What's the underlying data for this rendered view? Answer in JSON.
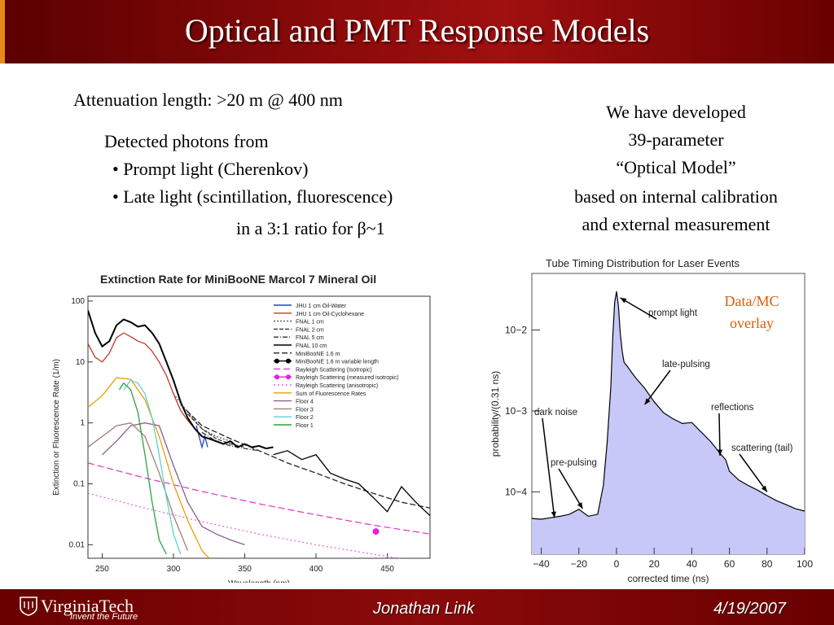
{
  "slide": {
    "title": "Optical and PMT Response Models",
    "attenuation": "Attenuation length:  >20 m @ 400 nm",
    "detected_heading": "Detected photons from",
    "bullets": [
      "• Prompt light (Cherenkov)",
      "• Late light (scintillation, fluorescence)"
    ],
    "ratio_prefix": "in a 3:1 ratio for ",
    "ratio_symbol": "β~1",
    "right_text": [
      "We have developed",
      "39-parameter",
      "“Optical Model”",
      "based on internal calibration",
      "and external measurement"
    ],
    "overlay_label": [
      "Data/MC",
      "overlay"
    ],
    "footer": {
      "org": "VirginiaTech",
      "org_tagline": "Invent the Future",
      "author": "Jonathan Link",
      "date": "4/19/2007"
    }
  },
  "chart_data": [
    {
      "type": "line",
      "title": "Extinction Rate for MiniBooNE Marcol 7 Mineral Oil",
      "xlabel": "Wavelength (nm)",
      "ylabel": "Extinction or Fluorescence Rate (1/m)",
      "yscale": "log",
      "xlim": [
        240,
        480
      ],
      "ylim": [
        0.006,
        120
      ],
      "x_ticks": [
        250,
        300,
        350,
        400,
        450
      ],
      "y_ticks": [
        {
          "value": 100,
          "label": "100"
        },
        {
          "value": 10,
          "label": "10"
        },
        {
          "value": 1,
          "label": "1"
        },
        {
          "value": 0.1,
          "label": "0.1"
        },
        {
          "value": 0.01,
          "label": "0.01"
        }
      ],
      "legend_position": "top-right",
      "series": [
        {
          "name": "JHU 1 cm Oil-Water",
          "color": "#1f3fd0",
          "dash": "",
          "x": [
            316,
            318,
            320,
            322,
            324
          ],
          "y": [
            0.9,
            0.6,
            0.4,
            0.6,
            0.4
          ]
        },
        {
          "name": "JHU 1 cm Oil-Cyclohexane",
          "color": "#c0392b",
          "dash": "",
          "x": [
            240,
            245,
            250,
            255,
            260,
            265,
            270,
            275,
            280,
            285,
            290,
            295,
            300,
            305,
            310,
            315
          ],
          "y": [
            20,
            12,
            10,
            14,
            25,
            30,
            26,
            22,
            20,
            15,
            10,
            6,
            3,
            1.6,
            1.1,
            0.8
          ]
        },
        {
          "name": "FNAL 1 cm",
          "color": "#555555",
          "dash": "2,2",
          "x": [
            300,
            310,
            320,
            330,
            340
          ],
          "y": [
            3,
            1.5,
            0.8,
            0.6,
            0.5
          ]
        },
        {
          "name": "FNAL 2 cm",
          "color": "#333333",
          "dash": "5,2",
          "x": [
            310,
            320,
            330,
            340,
            350
          ],
          "y": [
            1.4,
            0.8,
            0.55,
            0.45,
            0.4
          ]
        },
        {
          "name": "FNAL 5 cm",
          "color": "#333333",
          "dash": "6,2,1,2",
          "x": [
            320,
            330,
            340,
            350,
            360
          ],
          "y": [
            0.7,
            0.5,
            0.42,
            0.38,
            0.35
          ]
        },
        {
          "name": "FNAL 10 cm",
          "color": "#000000",
          "dash": "",
          "x": [
            240,
            245,
            250,
            255,
            260,
            265,
            270,
            275,
            280,
            285,
            290,
            295,
            300,
            305,
            310,
            315,
            320,
            325,
            330,
            335,
            340,
            345,
            350,
            355,
            360,
            365,
            370
          ],
          "y": [
            70,
            30,
            18,
            22,
            40,
            50,
            45,
            38,
            40,
            30,
            20,
            10,
            5,
            2.2,
            1.2,
            0.8,
            0.6,
            0.55,
            0.5,
            0.45,
            0.5,
            0.4,
            0.45,
            0.4,
            0.42,
            0.38,
            0.4
          ]
        },
        {
          "name": "MiniBooNE 1.6 m",
          "color": "#222222",
          "dash": "7,3",
          "x": [
            305,
            320,
            340,
            360,
            380,
            400,
            420,
            440,
            460,
            480
          ],
          "y": [
            2.0,
            0.9,
            0.55,
            0.35,
            0.22,
            0.15,
            0.1,
            0.07,
            0.05,
            0.04
          ]
        },
        {
          "name": "MiniBooNE 1.6 m variable length",
          "color": "#000000",
          "dash": "",
          "x": [
            370,
            380,
            390,
            400,
            410,
            420,
            430,
            440,
            450,
            460,
            470,
            480
          ],
          "y": [
            0.3,
            0.35,
            0.25,
            0.3,
            0.15,
            0.12,
            0.1,
            0.06,
            0.035,
            0.09,
            0.05,
            0.03
          ]
        },
        {
          "name": "Rayleigh Scattering (Isotropic)",
          "color": "#e040d0",
          "dash": "8,4",
          "x": [
            240,
            280,
            320,
            360,
            400,
            440,
            480
          ],
          "y": [
            0.22,
            0.125,
            0.075,
            0.047,
            0.031,
            0.021,
            0.015
          ]
        },
        {
          "name": "Rayleigh Scattering (measured isotropic)",
          "color": "#e020e0",
          "dash": "",
          "x": [
            442
          ],
          "y": [
            0.0165
          ]
        },
        {
          "name": "Rayleigh Scattering (anisotropic)",
          "color": "#e070e0",
          "dash": "2,3",
          "x": [
            240,
            280,
            320,
            360,
            400,
            440,
            480
          ],
          "y": [
            0.07,
            0.04,
            0.024,
            0.015,
            0.01,
            0.007,
            0.005
          ]
        },
        {
          "name": "Sum of Fluorescence Rates",
          "color": "#e8a000",
          "dash": "",
          "x": [
            240,
            250,
            260,
            270,
            280,
            290,
            300,
            310,
            320,
            325
          ],
          "y": [
            1.8,
            2.8,
            5.5,
            5.2,
            2.4,
            0.6,
            0.1,
            0.025,
            0.008,
            0.006
          ]
        },
        {
          "name": "Floor 4",
          "color": "#8a6090",
          "dash": "",
          "x": [
            250,
            260,
            270,
            280,
            290,
            300,
            310,
            320,
            330,
            340,
            350
          ],
          "y": [
            0.3,
            0.5,
            0.9,
            1.0,
            0.9,
            0.2,
            0.05,
            0.02,
            0.015,
            0.012,
            0.01
          ]
        },
        {
          "name": "Floor 3",
          "color": "#a08070",
          "dash": "",
          "x": [
            240,
            250,
            260,
            270,
            280,
            290,
            300,
            310
          ],
          "y": [
            0.4,
            0.6,
            0.9,
            1.0,
            0.6,
            0.15,
            0.03,
            0.008
          ]
        },
        {
          "name": "Floor 2",
          "color": "#60d0d0",
          "dash": "",
          "x": [
            265,
            270,
            275,
            280,
            285,
            290,
            295,
            300,
            305
          ],
          "y": [
            3.5,
            5,
            4.5,
            3,
            1.2,
            0.3,
            0.06,
            0.015,
            0.007
          ]
        },
        {
          "name": "Floor 1",
          "color": "#30a040",
          "dash": "",
          "x": [
            262,
            265,
            270,
            275,
            280,
            285,
            290,
            295
          ],
          "y": [
            3.5,
            4.5,
            3.5,
            1.5,
            0.3,
            0.05,
            0.012,
            0.007
          ]
        }
      ]
    },
    {
      "type": "area",
      "title": "Tube  Timing Distribution for Laser Events",
      "xlabel": "corrected time (ns)",
      "ylabel": "probability/(0.31 ns)",
      "yscale": "log",
      "xlim": [
        -45,
        100
      ],
      "ylim": [
        1.7e-05,
        0.05
      ],
      "x_ticks": [
        -40,
        -20,
        0,
        20,
        40,
        60,
        80,
        100
      ],
      "y_ticks": [
        {
          "value": 0.01,
          "label": "10−2"
        },
        {
          "value": 0.001,
          "label": "10−3"
        },
        {
          "value": 0.0001,
          "label": "10−4"
        }
      ],
      "fill_color": "#c8c8f8",
      "line_color": "#000000",
      "x": [
        -45,
        -40,
        -35,
        -30,
        -25,
        -20,
        -15,
        -10,
        -7,
        -5,
        -3,
        -2,
        -1,
        0,
        1,
        2,
        3,
        4,
        6,
        8,
        10,
        15,
        20,
        25,
        30,
        35,
        40,
        45,
        50,
        55,
        58,
        60,
        65,
        70,
        75,
        80,
        85,
        90,
        95,
        100
      ],
      "y": [
        4.7e-05,
        4.6e-05,
        4.8e-05,
        5e-05,
        5.3e-05,
        6.1e-05,
        5e-05,
        5.3e-05,
        0.00012,
        0.0004,
        0.002,
        0.008,
        0.022,
        0.03,
        0.02,
        0.009,
        0.0055,
        0.004,
        0.0035,
        0.003,
        0.0026,
        0.0019,
        0.0013,
        0.00095,
        0.0008,
        0.0007,
        0.00072,
        0.00055,
        0.00042,
        0.0003,
        0.00025,
        0.00018,
        0.00014,
        0.00012,
        0.000105,
        9e-05,
        7.8e-05,
        7e-05,
        6.2e-05,
        5.8e-05
      ],
      "annotations": [
        {
          "label": "prompt light",
          "x": 2,
          "y": 0.025
        },
        {
          "label": "late-pulsing",
          "x": 15,
          "y": 0.0012
        },
        {
          "label": "reflections",
          "x": 55,
          "y": 0.00028
        },
        {
          "label": "scattering (tail)",
          "x": 80,
          "y": 0.0001
        },
        {
          "label": "dark noise",
          "x": -33,
          "y": 4.8e-05
        },
        {
          "label": "pre-pulsing",
          "x": -18,
          "y": 6.2e-05
        }
      ]
    }
  ]
}
